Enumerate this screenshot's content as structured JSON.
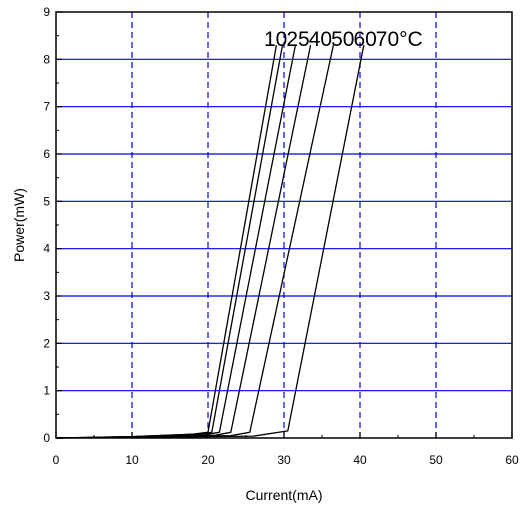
{
  "chart_data": {
    "type": "line",
    "xlabel": "Current(mA)",
    "ylabel": "Power(mW)",
    "xlim": [
      0,
      60
    ],
    "ylim": [
      0,
      9
    ],
    "xticks": [
      0,
      10,
      20,
      30,
      40,
      50,
      60
    ],
    "yticks": [
      0,
      1,
      2,
      3,
      4,
      5,
      6,
      7,
      8,
      9
    ],
    "grid": true,
    "grid_color": "#0000ee",
    "line_color": "#000000",
    "label_unit": "°C",
    "series": [
      {
        "name": "10",
        "points": [
          [
            0,
            0
          ],
          [
            10,
            0.03
          ],
          [
            18,
            0.08
          ],
          [
            20,
            0.12
          ],
          [
            29,
            8.3
          ]
        ]
      },
      {
        "name": "25",
        "points": [
          [
            0,
            0
          ],
          [
            10,
            0.03
          ],
          [
            18.5,
            0.08
          ],
          [
            20.5,
            0.12
          ],
          [
            29.8,
            8.3
          ]
        ]
      },
      {
        "name": "40",
        "points": [
          [
            0,
            0
          ],
          [
            10,
            0.02
          ],
          [
            19.5,
            0.07
          ],
          [
            21.5,
            0.12
          ],
          [
            31.5,
            8.3
          ]
        ]
      },
      {
        "name": "50",
        "points": [
          [
            0,
            0
          ],
          [
            10,
            0.02
          ],
          [
            21,
            0.06
          ],
          [
            23,
            0.12
          ],
          [
            33.5,
            8.3
          ]
        ]
      },
      {
        "name": "60",
        "points": [
          [
            0,
            0
          ],
          [
            10,
            0.02
          ],
          [
            23,
            0.05
          ],
          [
            25.5,
            0.12
          ],
          [
            36.5,
            8.3
          ]
        ]
      },
      {
        "name": "70",
        "points": [
          [
            0,
            0
          ],
          [
            10,
            0.01
          ],
          [
            26,
            0.04
          ],
          [
            30.5,
            0.15
          ],
          [
            40.5,
            8.3
          ]
        ]
      }
    ]
  }
}
